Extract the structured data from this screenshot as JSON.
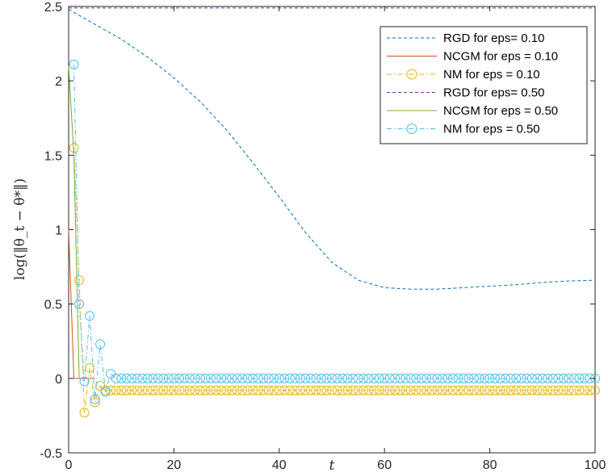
{
  "chart_data": {
    "type": "line",
    "title": "",
    "xlabel": "t",
    "ylabel": "log(‖θ_t − θ*‖)",
    "xlim": [
      0,
      100
    ],
    "ylim": [
      -0.5,
      2.5
    ],
    "xticks": [
      "0",
      "20",
      "40",
      "60",
      "80",
      "100"
    ],
    "yticks": [
      "-0.5",
      "0",
      "0.5",
      "1",
      "1.5",
      "2",
      "2.5"
    ],
    "grid": false,
    "legend_position": "top-right",
    "colors": {
      "rgd_010": "#0072BD",
      "ncgm_010": "#D95319",
      "nm_010": "#EDB120",
      "rgd_050": "#7E2F8E",
      "ncgm_050": "#77AC30",
      "nm_050": "#4DBEEE"
    },
    "series": [
      {
        "name": "RGD for eps= 0.10",
        "style": "dashed",
        "color_key": "rgd_010",
        "x": [
          0,
          5,
          10,
          15,
          20,
          25,
          30,
          35,
          40,
          45,
          50,
          55,
          60,
          65,
          70,
          75,
          80,
          85,
          90,
          95,
          100
        ],
        "y": [
          2.48,
          2.38,
          2.28,
          2.16,
          2.02,
          1.86,
          1.67,
          1.45,
          1.22,
          0.98,
          0.78,
          0.66,
          0.61,
          0.6,
          0.6,
          0.61,
          0.62,
          0.63,
          0.645,
          0.655,
          0.66
        ]
      },
      {
        "name": "NCGM for eps = 0.10",
        "style": "solid",
        "color_key": "ncgm_010",
        "x": [
          0,
          1,
          2,
          3,
          4,
          5
        ],
        "y": [
          1.0,
          0.0,
          0.0,
          0.0,
          0.0,
          0.0
        ]
      },
      {
        "name": "NM for eps = 0.10",
        "style": "dashdot-circle",
        "color_key": "nm_010",
        "x_start": 1,
        "x_end": 100,
        "y_head": [
          1.55,
          0.66,
          -0.23,
          0.07,
          -0.16,
          -0.05,
          -0.08
        ],
        "y_tail": -0.08
      },
      {
        "name": "RGD for eps= 0.50",
        "style": "dashed",
        "color_key": "rgd_050",
        "x": [
          0,
          100
        ],
        "y": [
          2.49,
          2.49
        ]
      },
      {
        "name": "NCGM for eps = 0.50",
        "style": "solid",
        "color_key": "ncgm_050",
        "x": [
          0,
          1,
          2
        ],
        "y": [
          2.1,
          1.5,
          0.0
        ]
      },
      {
        "name": "NM for eps = 0.50",
        "style": "dashdot-circle",
        "color_key": "nm_050",
        "x_start": 1,
        "x_end": 100,
        "y_head": [
          2.11,
          0.5,
          -0.02,
          0.42,
          -0.14,
          0.23,
          -0.09,
          0.03
        ],
        "y_tail": 0.0
      }
    ]
  }
}
